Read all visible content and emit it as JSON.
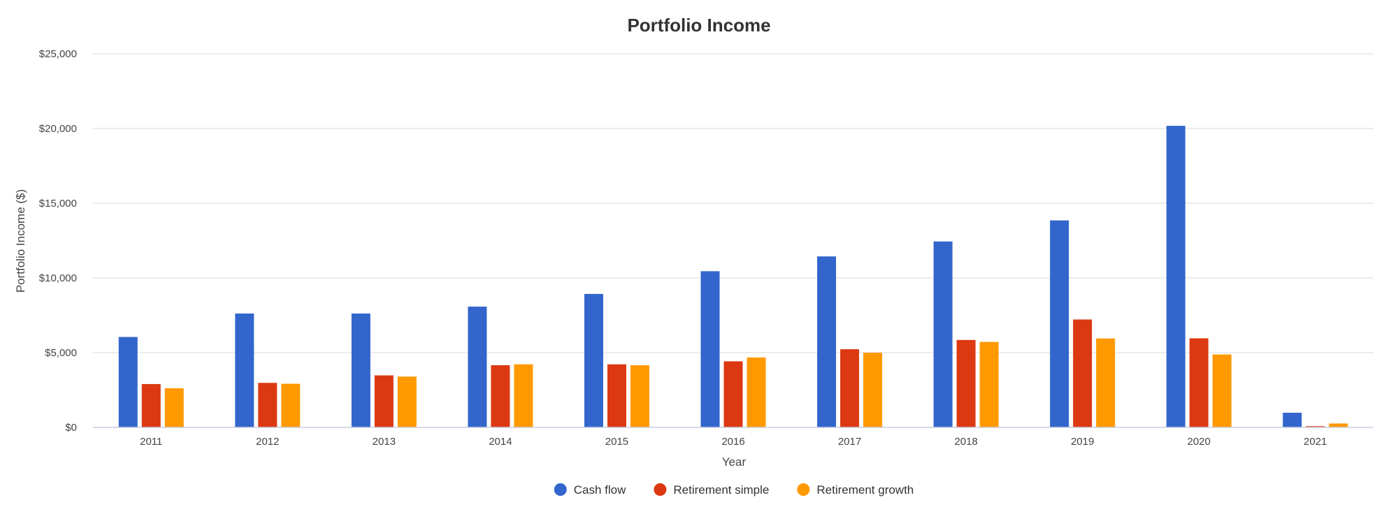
{
  "chart_data": {
    "type": "bar",
    "title": "Portfolio Income",
    "xlabel": "Year",
    "ylabel": "Portfolio Income ($)",
    "categories": [
      "2011",
      "2012",
      "2013",
      "2014",
      "2015",
      "2016",
      "2017",
      "2018",
      "2019",
      "2020",
      "2021"
    ],
    "series": [
      {
        "name": "Cash flow",
        "color": "#3366cc",
        "values": [
          6050,
          7620,
          7620,
          8080,
          8930,
          10450,
          11440,
          12440,
          13850,
          20180,
          980
        ]
      },
      {
        "name": "Retirement simple",
        "color": "#dc3912",
        "values": [
          2900,
          2980,
          3480,
          4160,
          4220,
          4420,
          5230,
          5850,
          7220,
          5960,
          80
        ]
      },
      {
        "name": "Retirement growth",
        "color": "#ff9900",
        "values": [
          2620,
          2920,
          3400,
          4220,
          4160,
          4680,
          5000,
          5720,
          5950,
          4880,
          260
        ]
      }
    ],
    "ylim": [
      0,
      25000
    ],
    "yticks": [
      0,
      5000,
      10000,
      15000,
      20000,
      25000
    ],
    "ytick_labels": [
      "$0",
      "$5,000",
      "$10,000",
      "$15,000",
      "$20,000",
      "$25,000"
    ],
    "grid": true,
    "legend_position": "bottom"
  }
}
